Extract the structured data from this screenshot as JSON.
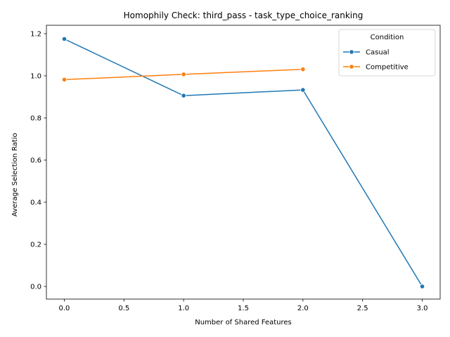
{
  "chart_data": {
    "type": "line",
    "title": "Homophily Check: third_pass - task_type_choice_ranking",
    "xlabel": "Number of Shared Features",
    "ylabel": "Average Selection Ratio",
    "xlim": [
      -0.15,
      3.15
    ],
    "ylim": [
      -0.06,
      1.24
    ],
    "xticks": [
      0.0,
      0.5,
      1.0,
      1.5,
      2.0,
      2.5,
      3.0
    ],
    "xtick_labels": [
      "0.0",
      "0.5",
      "1.0",
      "1.5",
      "2.0",
      "2.5",
      "3.0"
    ],
    "yticks": [
      0.0,
      0.2,
      0.4,
      0.6,
      0.8,
      1.0,
      1.2
    ],
    "ytick_labels": [
      "0.0",
      "0.2",
      "0.4",
      "0.6",
      "0.8",
      "1.0",
      "1.2"
    ],
    "grid": false,
    "legend": {
      "title": "Condition",
      "placement": "top-right"
    },
    "series": [
      {
        "name": "Casual",
        "color": "#1f77b4",
        "x": [
          0,
          1,
          2,
          3
        ],
        "y": [
          1.175,
          0.906,
          0.933,
          0.0
        ]
      },
      {
        "name": "Competitive",
        "color": "#ff7f0e",
        "x": [
          0,
          1,
          2
        ],
        "y": [
          0.982,
          1.007,
          1.031
        ]
      }
    ]
  }
}
